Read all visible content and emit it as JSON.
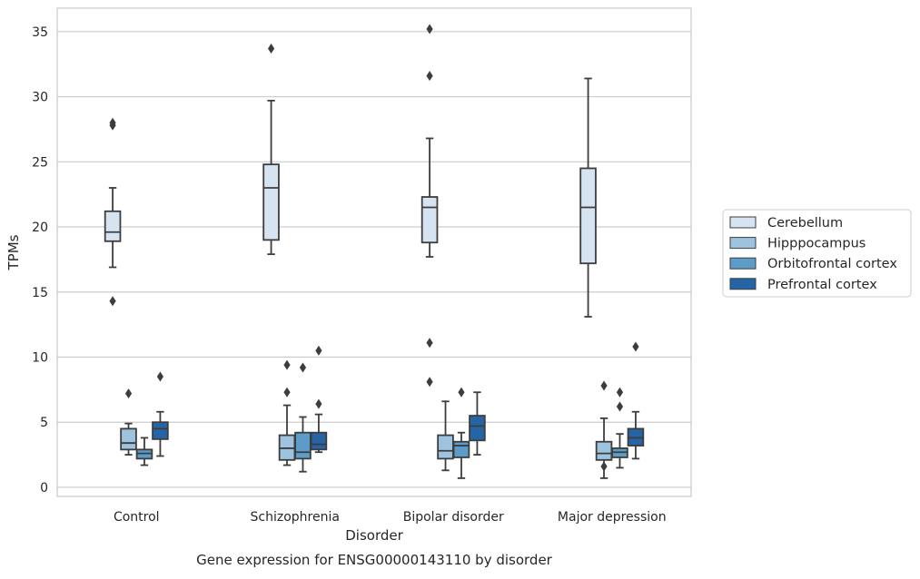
{
  "chart_data": {
    "type": "box",
    "title": "",
    "xlabel": "Disorder",
    "ylabel": "TPMs",
    "caption": "Gene expression for ENSG00000143110 by disorder",
    "categories": [
      "Control",
      "Schizophrenia",
      "Bipolar disorder",
      "Major depression"
    ],
    "y_ticks": [
      0,
      5,
      10,
      15,
      20,
      25,
      30,
      35
    ],
    "ylim": [
      -0.7,
      36.8
    ],
    "grid": "horizontal",
    "legend_position": "right",
    "series": [
      {
        "name": "Cerebellum",
        "color": "#d6e4f2",
        "boxes": [
          {
            "whisker_low": 16.9,
            "q1": 18.9,
            "median": 19.6,
            "q3": 21.2,
            "whisker_high": 23.0,
            "outliers": [
              28.0,
              27.8,
              14.3
            ]
          },
          {
            "whisker_low": 17.9,
            "q1": 19.0,
            "median": 23.0,
            "q3": 24.8,
            "whisker_high": 29.7,
            "outliers": [
              33.7
            ]
          },
          {
            "whisker_low": 17.7,
            "q1": 18.8,
            "median": 21.5,
            "q3": 22.3,
            "whisker_high": 26.8,
            "outliers": [
              35.2,
              31.6,
              11.1,
              8.1
            ]
          },
          {
            "whisker_low": 13.1,
            "q1": 17.2,
            "median": 21.5,
            "q3": 24.5,
            "whisker_high": 31.4,
            "outliers": []
          }
        ]
      },
      {
        "name": "Hipppocampus",
        "color": "#9dc3de",
        "boxes": [
          {
            "whisker_low": 2.5,
            "q1": 2.9,
            "median": 3.4,
            "q3": 4.5,
            "whisker_high": 4.9,
            "outliers": [
              7.2
            ]
          },
          {
            "whisker_low": 1.7,
            "q1": 2.1,
            "median": 3.0,
            "q3": 4.0,
            "whisker_high": 6.3,
            "outliers": [
              7.3,
              9.4
            ]
          },
          {
            "whisker_low": 1.3,
            "q1": 2.2,
            "median": 2.8,
            "q3": 4.0,
            "whisker_high": 6.6,
            "outliers": []
          },
          {
            "whisker_low": 0.7,
            "q1": 2.1,
            "median": 2.6,
            "q3": 3.5,
            "whisker_high": 5.3,
            "outliers": [
              1.6,
              7.8
            ]
          }
        ]
      },
      {
        "name": "Orbitofrontal cortex",
        "color": "#5b9cc9",
        "boxes": [
          {
            "whisker_low": 1.7,
            "q1": 2.2,
            "median": 2.6,
            "q3": 2.9,
            "whisker_high": 3.8,
            "outliers": []
          },
          {
            "whisker_low": 1.2,
            "q1": 2.2,
            "median": 2.7,
            "q3": 4.2,
            "whisker_high": 5.4,
            "outliers": [
              9.2
            ]
          },
          {
            "whisker_low": 0.7,
            "q1": 2.3,
            "median": 3.2,
            "q3": 3.5,
            "whisker_high": 4.2,
            "outliers": [
              7.3
            ]
          },
          {
            "whisker_low": 1.5,
            "q1": 2.3,
            "median": 2.7,
            "q3": 3.0,
            "whisker_high": 4.1,
            "outliers": [
              6.2,
              7.3
            ]
          }
        ]
      },
      {
        "name": "Prefrontal cortex",
        "color": "#2565a6",
        "boxes": [
          {
            "whisker_low": 2.4,
            "q1": 3.7,
            "median": 4.5,
            "q3": 5.0,
            "whisker_high": 5.8,
            "outliers": [
              8.5
            ]
          },
          {
            "whisker_low": 2.7,
            "q1": 2.9,
            "median": 3.3,
            "q3": 4.2,
            "whisker_high": 5.6,
            "outliers": [
              6.4,
              10.5
            ]
          },
          {
            "whisker_low": 2.5,
            "q1": 3.6,
            "median": 4.7,
            "q3": 5.5,
            "whisker_high": 7.3,
            "outliers": []
          },
          {
            "whisker_low": 2.2,
            "q1": 3.2,
            "median": 3.8,
            "q3": 4.5,
            "whisker_high": 5.8,
            "outliers": [
              10.8
            ]
          }
        ]
      }
    ]
  }
}
